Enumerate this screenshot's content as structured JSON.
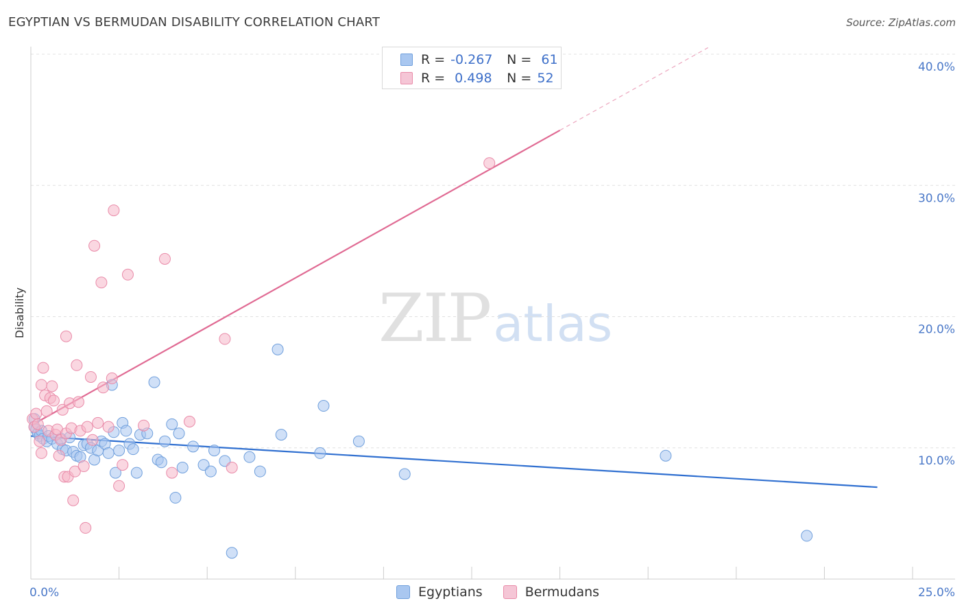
{
  "title": "EGYPTIAN VS BERMUDAN DISABILITY CORRELATION CHART",
  "source": "Source: ZipAtlas.com",
  "watermark": {
    "zip": "ZIP",
    "atlas": "atlas"
  },
  "legend_top": {
    "rows": [
      {
        "r_label": "R =",
        "r_value": "-0.267",
        "n_label": "N =",
        "n_value": "61",
        "color": "#a9c7f0"
      },
      {
        "r_label": "R =",
        "r_value": "0.498",
        "n_label": "N =",
        "n_value": "52",
        "color": "#f5b6c9"
      }
    ]
  },
  "legend_bottom": {
    "items": [
      {
        "label": "Egyptians",
        "color": "#a9c7f0"
      },
      {
        "label": "Bermudans",
        "color": "#f5b6c9"
      }
    ]
  },
  "chart_data": {
    "type": "scatter",
    "title": "EGYPTIAN VS BERMUDAN DISABILITY CORRELATION CHART",
    "xlabel": "",
    "ylabel": "Disability",
    "xlim": [
      0,
      25
    ],
    "ylim": [
      0,
      40
    ],
    "x_tick_labels": [
      "0.0%",
      "25.0%"
    ],
    "y_tick_labels": [
      "10.0%",
      "20.0%",
      "30.0%",
      "40.0%"
    ],
    "y_ticks": [
      10,
      20,
      30,
      40
    ],
    "grid": "horizontal-dashed",
    "legend_placement": "top-center",
    "series": [
      {
        "name": "Egyptians",
        "color": "#a9c7f0",
        "stroke": "#6f9fdc",
        "trend": {
          "x": [
            0,
            24
          ],
          "y": [
            10.9,
            7.0
          ],
          "color": "#2f6fd0"
        },
        "points": [
          [
            0.1,
            12.2
          ],
          [
            0.1,
            11.6
          ],
          [
            0.15,
            11.4
          ],
          [
            0.2,
            11.1
          ],
          [
            0.25,
            10.9
          ],
          [
            0.3,
            11.3
          ],
          [
            0.35,
            10.7
          ],
          [
            0.45,
            10.5
          ],
          [
            0.5,
            10.9
          ],
          [
            0.6,
            10.7
          ],
          [
            0.75,
            10.3
          ],
          [
            0.85,
            10.7
          ],
          [
            0.9,
            9.9
          ],
          [
            1.0,
            9.8
          ],
          [
            1.1,
            10.8
          ],
          [
            1.2,
            9.7
          ],
          [
            1.3,
            9.4
          ],
          [
            1.4,
            9.3
          ],
          [
            1.5,
            10.2
          ],
          [
            1.6,
            10.3
          ],
          [
            1.7,
            10.0
          ],
          [
            1.8,
            9.1
          ],
          [
            1.9,
            9.8
          ],
          [
            2.0,
            10.5
          ],
          [
            2.1,
            10.3
          ],
          [
            2.2,
            9.6
          ],
          [
            2.3,
            14.8
          ],
          [
            2.35,
            11.2
          ],
          [
            2.4,
            8.1
          ],
          [
            2.5,
            9.8
          ],
          [
            2.6,
            11.9
          ],
          [
            2.7,
            11.3
          ],
          [
            2.8,
            10.3
          ],
          [
            2.9,
            9.9
          ],
          [
            3.0,
            8.1
          ],
          [
            3.1,
            11.0
          ],
          [
            3.3,
            11.1
          ],
          [
            3.5,
            15.0
          ],
          [
            3.6,
            9.1
          ],
          [
            3.7,
            8.9
          ],
          [
            3.8,
            10.5
          ],
          [
            4.0,
            11.8
          ],
          [
            4.1,
            6.2
          ],
          [
            4.2,
            11.1
          ],
          [
            4.3,
            8.5
          ],
          [
            4.6,
            10.1
          ],
          [
            4.9,
            8.7
          ],
          [
            5.1,
            8.2
          ],
          [
            5.2,
            9.8
          ],
          [
            5.5,
            9.0
          ],
          [
            5.7,
            2.0
          ],
          [
            6.2,
            9.3
          ],
          [
            6.5,
            8.2
          ],
          [
            7.0,
            17.5
          ],
          [
            7.1,
            11.0
          ],
          [
            8.2,
            9.6
          ],
          [
            8.3,
            13.2
          ],
          [
            9.3,
            10.5
          ],
          [
            10.6,
            8.0
          ],
          [
            18.0,
            9.4
          ],
          [
            22.0,
            3.3
          ]
        ]
      },
      {
        "name": "Bermudans",
        "color": "#f5b6c9",
        "stroke": "#e98aa8",
        "trend": {
          "x": [
            0,
            15
          ],
          "y": [
            11.7,
            34.2
          ],
          "color": "#e06a93",
          "dashed_to": {
            "x": 19.2,
            "y": 40.5
          }
        },
        "points": [
          [
            0.05,
            12.2
          ],
          [
            0.1,
            11.6
          ],
          [
            0.15,
            12.6
          ],
          [
            0.2,
            11.8
          ],
          [
            0.25,
            10.5
          ],
          [
            0.3,
            9.6
          ],
          [
            0.3,
            14.8
          ],
          [
            0.35,
            16.1
          ],
          [
            0.4,
            14.0
          ],
          [
            0.45,
            12.8
          ],
          [
            0.5,
            11.3
          ],
          [
            0.55,
            13.8
          ],
          [
            0.6,
            14.7
          ],
          [
            0.65,
            13.6
          ],
          [
            0.7,
            11.0
          ],
          [
            0.75,
            11.4
          ],
          [
            0.8,
            9.4
          ],
          [
            0.85,
            10.6
          ],
          [
            0.9,
            12.9
          ],
          [
            0.95,
            7.8
          ],
          [
            1.0,
            11.1
          ],
          [
            1.05,
            7.8
          ],
          [
            1.1,
            13.4
          ],
          [
            1.15,
            11.5
          ],
          [
            1.2,
            6.0
          ],
          [
            1.25,
            8.2
          ],
          [
            1.3,
            16.3
          ],
          [
            1.35,
            13.5
          ],
          [
            1.4,
            11.3
          ],
          [
            1.5,
            8.6
          ],
          [
            1.55,
            3.9
          ],
          [
            1.6,
            11.6
          ],
          [
            1.7,
            15.4
          ],
          [
            1.75,
            10.6
          ],
          [
            1.8,
            25.4
          ],
          [
            1.9,
            11.9
          ],
          [
            2.0,
            22.6
          ],
          [
            2.05,
            14.6
          ],
          [
            2.2,
            11.6
          ],
          [
            2.3,
            15.3
          ],
          [
            2.35,
            28.1
          ],
          [
            2.5,
            7.1
          ],
          [
            2.6,
            8.7
          ],
          [
            2.75,
            23.2
          ],
          [
            3.2,
            11.7
          ],
          [
            3.8,
            24.4
          ],
          [
            4.0,
            8.1
          ],
          [
            4.5,
            12.0
          ],
          [
            5.5,
            18.3
          ],
          [
            5.7,
            8.5
          ],
          [
            13.0,
            31.7
          ],
          [
            1.0,
            18.5
          ]
        ]
      }
    ]
  }
}
